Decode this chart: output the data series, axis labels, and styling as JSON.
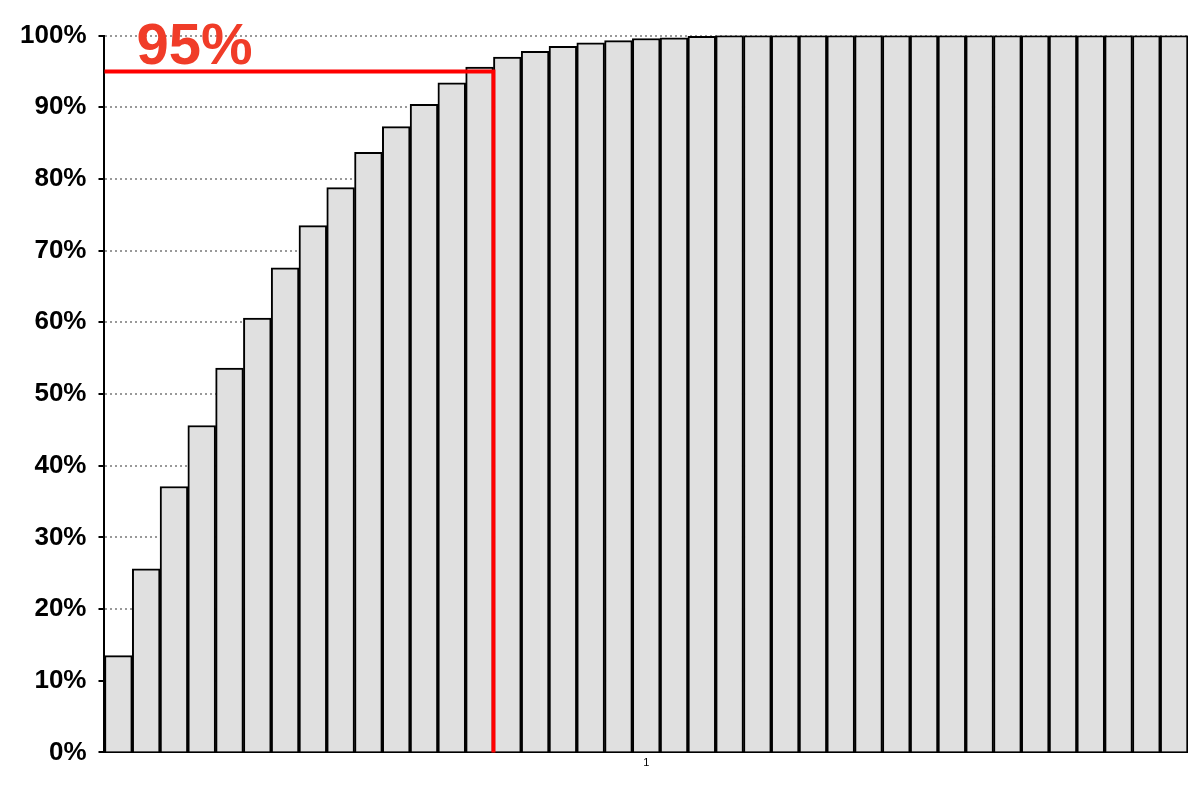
{
  "chart_data": {
    "type": "bar",
    "xlabel": "1",
    "categories": [
      null,
      null,
      null,
      null,
      null,
      null,
      null,
      null,
      null,
      null,
      null,
      null,
      null,
      null,
      null,
      null,
      null,
      null,
      null,
      null,
      null,
      null,
      null,
      null,
      null,
      null,
      null,
      null,
      null,
      null,
      null,
      null,
      null,
      null,
      null,
      null,
      null,
      null,
      null
    ],
    "values": [
      13.5,
      25.6,
      37.1,
      45.6,
      53.6,
      60.6,
      67.6,
      73.5,
      78.8,
      83.7,
      87.3,
      90.4,
      93.4,
      95.6,
      97.0,
      97.8,
      98.5,
      99.0,
      99.3,
      99.6,
      99.7,
      99.9,
      100,
      100,
      100,
      100,
      100,
      100,
      100,
      100,
      100,
      100,
      100,
      100,
      100,
      100,
      100,
      100,
      100
    ],
    "color": "#e0e0e0",
    "ylim": [
      0,
      100
    ],
    "yticks": [
      {
        "value": 0,
        "label": "0%"
      },
      {
        "value": 10,
        "label": "10%"
      },
      {
        "value": 20,
        "label": "20%"
      },
      {
        "value": 30,
        "label": "30%"
      },
      {
        "value": 40,
        "label": "40%"
      },
      {
        "value": 50,
        "label": "50%"
      },
      {
        "value": 60,
        "label": "60%"
      },
      {
        "value": 70,
        "label": "70%"
      },
      {
        "value": 80,
        "label": "80%"
      },
      {
        "value": 90,
        "label": "90%"
      },
      {
        "value": 100,
        "label": "100%"
      }
    ],
    "tick_labels": "y",
    "grid": "y",
    "ref_lines": [
      {
        "axis": "y",
        "value": 95,
        "label": "95%",
        "color": "#ff0000"
      }
    ]
  }
}
